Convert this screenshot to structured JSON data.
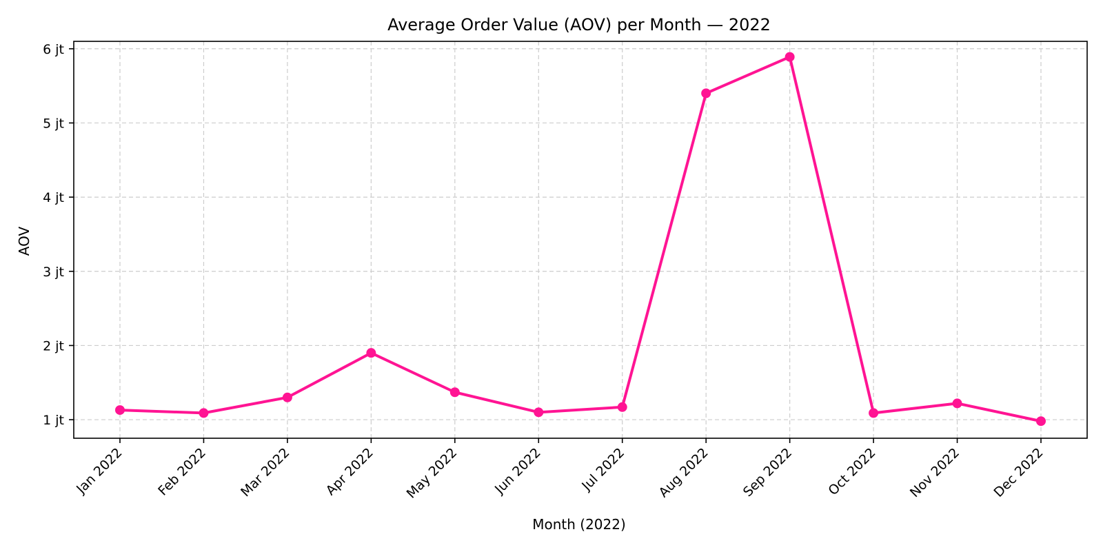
{
  "chart_data": {
    "type": "line",
    "title": "Average Order Value (AOV) per Month — 2022",
    "xlabel": "Month (2022)",
    "ylabel": "AOV",
    "categories": [
      "Jan 2022",
      "Feb 2022",
      "Mar 2022",
      "Apr 2022",
      "May 2022",
      "Jun 2022",
      "Jul 2022",
      "Aug 2022",
      "Sep 2022",
      "Oct 2022",
      "Nov 2022",
      "Dec 2022"
    ],
    "series": [
      {
        "color": "#ff1493",
        "values": [
          1130000,
          1090000,
          1300000,
          1900000,
          1370000,
          1100000,
          1170000,
          5400000,
          5890000,
          1090000,
          1220000,
          980000
        ]
      }
    ],
    "ylim": [
      750000,
      6100000
    ],
    "yticks": [
      1000000,
      2000000,
      3000000,
      4000000,
      5000000,
      6000000
    ],
    "ytick_labels": [
      "1 jt",
      "2 jt",
      "3 jt",
      "4 jt",
      "5 jt",
      "6 jt"
    ],
    "grid": true,
    "legend": "none"
  }
}
